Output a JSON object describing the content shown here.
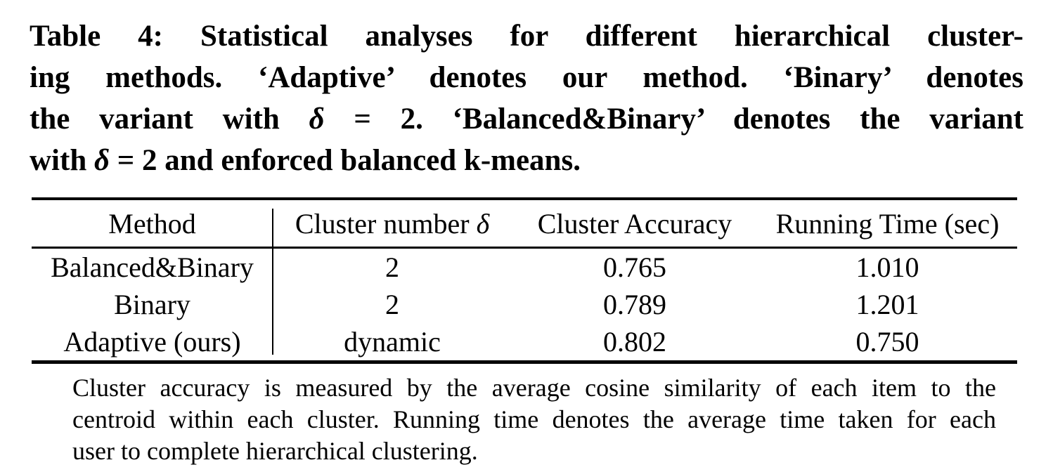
{
  "caption": {
    "label": "Table 4",
    "lines": [
      "Table 4: Statistical analyses for different hierarchical cluster-",
      "ing methods. ‘Adaptive’ denotes our method. ‘Binary’ denotes",
      "the variant with *δ* = 2. ‘Balanced&Binary’ denotes the variant",
      "with *δ* = 2 and enforced balanced k-means."
    ]
  },
  "table": {
    "columns": [
      "Method",
      "Cluster number *δ*",
      "Cluster Accuracy",
      "Running Time (sec)"
    ],
    "rows": [
      {
        "method": "Balanced&Binary",
        "cluster_number": "2",
        "cluster_accuracy": "0.765",
        "running_time": "1.010"
      },
      {
        "method": "Binary",
        "cluster_number": "2",
        "cluster_accuracy": "0.789",
        "running_time": "1.201"
      },
      {
        "method": "Adaptive (ours)",
        "cluster_number": "dynamic",
        "cluster_accuracy": "0.802",
        "running_time": "0.750"
      }
    ]
  },
  "footnote": {
    "lines": [
      "Cluster accuracy is measured by the average cosine similarity of each item to the",
      "centroid within each cluster. Running time denotes the average time taken for each",
      "user to complete hierarchical clustering."
    ]
  },
  "colors": {
    "text": "#000000",
    "background": "#ffffff",
    "rule": "#000000"
  }
}
